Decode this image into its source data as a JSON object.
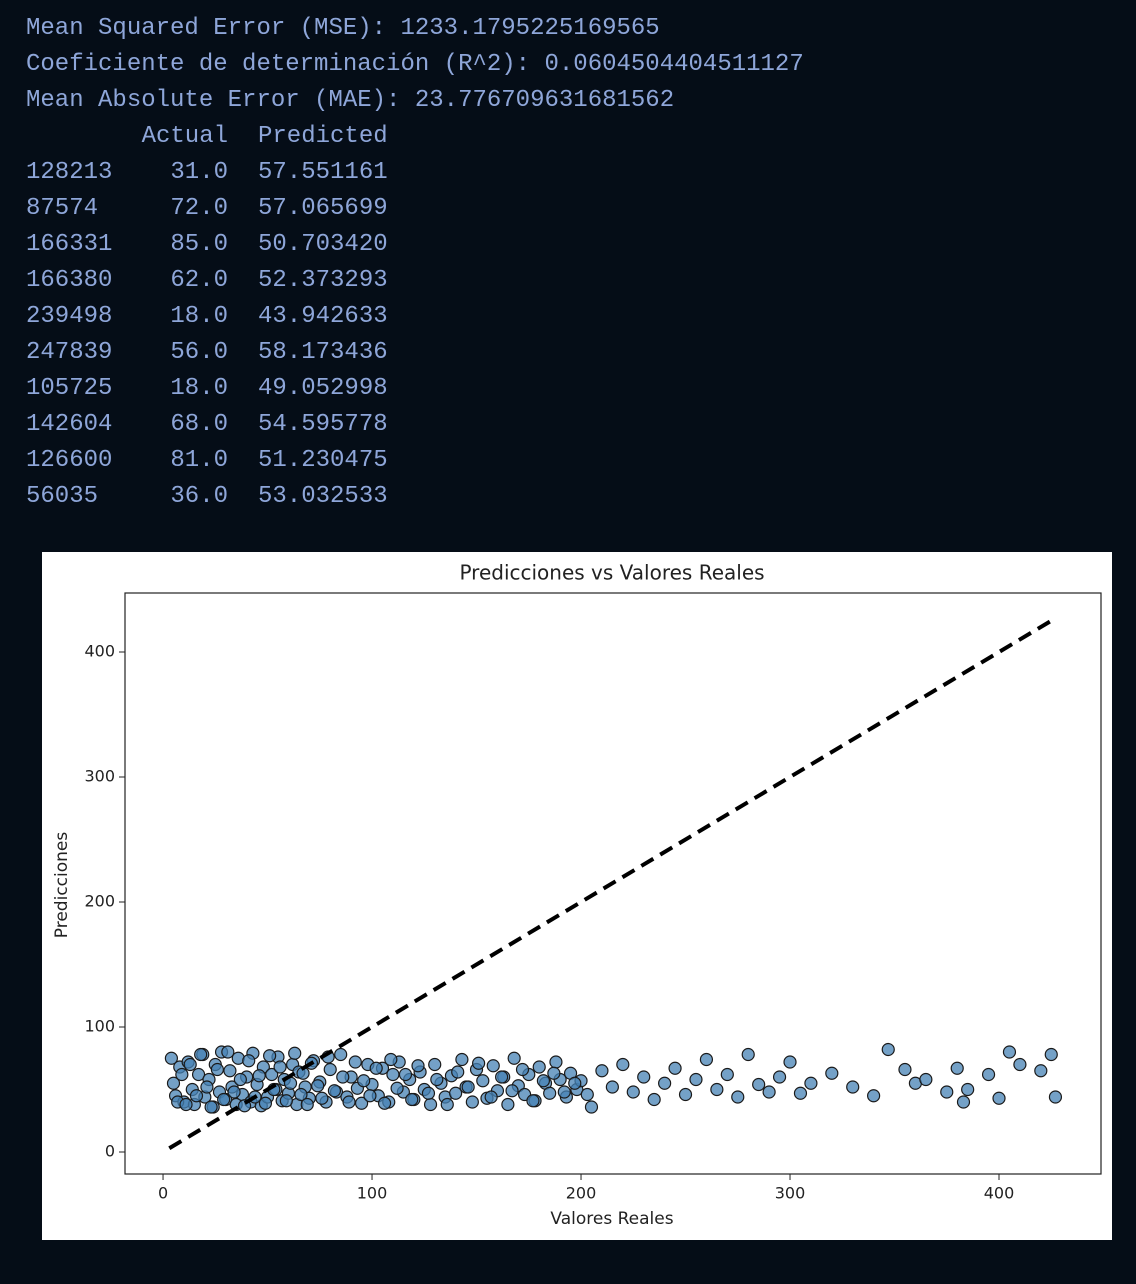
{
  "output": {
    "lines": [
      "Mean Squared Error (MSE): 1233.1795225169565",
      "Coeficiente de determinación (R^2): 0.0604504404511127",
      "Mean Absolute Error (MAE): 23.776709631681562"
    ],
    "table": {
      "columns": [
        "Actual",
        "Predicted"
      ],
      "rows": [
        [
          "128213",
          "31.0",
          "57.551161"
        ],
        [
          "87574",
          "72.0",
          "57.065699"
        ],
        [
          "166331",
          "85.0",
          "50.703420"
        ],
        [
          "166380",
          "62.0",
          "52.373293"
        ],
        [
          "239498",
          "18.0",
          "43.942633"
        ],
        [
          "247839",
          "56.0",
          "58.173436"
        ],
        [
          "105725",
          "18.0",
          "49.052998"
        ],
        [
          "142604",
          "68.0",
          "54.595778"
        ],
        [
          "126600",
          "81.0",
          "51.230475"
        ],
        [
          "56035",
          "36.0",
          "53.032533"
        ]
      ]
    }
  },
  "chart_data": {
    "type": "scatter",
    "title": "Predicciones vs Valores Reales",
    "x_label": "Valores Reales",
    "y_label": "Predicciones",
    "xlim": [
      -18.2,
      448.8
    ],
    "ylim": [
      -17.6,
      447.2
    ],
    "xticks": [
      0,
      100,
      200,
      300,
      400
    ],
    "yticks": [
      0,
      100,
      200,
      300,
      400
    ],
    "points": {
      "color": "#4682b4",
      "x": [
        5,
        6,
        8,
        10,
        12,
        14,
        15,
        17,
        19,
        20,
        22,
        24,
        25,
        27,
        28,
        30,
        32,
        33,
        35,
        36,
        38,
        40,
        42,
        43,
        45,
        47,
        48,
        50,
        52,
        54,
        55,
        57,
        58,
        60,
        62,
        64,
        65,
        68,
        70,
        72,
        75,
        78,
        80,
        83,
        85,
        88,
        90,
        93,
        95,
        98,
        100,
        103,
        105,
        108,
        110,
        113,
        115,
        118,
        120,
        123,
        125,
        128,
        130,
        133,
        135,
        138,
        140,
        143,
        145,
        148,
        150,
        153,
        155,
        158,
        160,
        163,
        165,
        168,
        170,
        173,
        175,
        178,
        180,
        183,
        185,
        188,
        190,
        193,
        195,
        198,
        200,
        203,
        205,
        210,
        215,
        220,
        225,
        230,
        235,
        240,
        245,
        250,
        255,
        260,
        265,
        270,
        275,
        280,
        285,
        290,
        295,
        300,
        305,
        310,
        320,
        330,
        340,
        347,
        355,
        360,
        365,
        375,
        380,
        383,
        385,
        395,
        400,
        405,
        410,
        420,
        425,
        427,
        4,
        7,
        9,
        11,
        13,
        16,
        18,
        21,
        23,
        26,
        29,
        31,
        34,
        37,
        39,
        41,
        44,
        46,
        49,
        51,
        53,
        56,
        59,
        61,
        63,
        66,
        67,
        69,
        71,
        74,
        76,
        79,
        82,
        86,
        89,
        92,
        96,
        99,
        102,
        106,
        109,
        112,
        116,
        119,
        122,
        127,
        131,
        136,
        141,
        146,
        151,
        157,
        162,
        167,
        172,
        177,
        182,
        187,
        192,
        197
      ],
      "y": [
        55,
        45,
        68,
        40,
        72,
        50,
        38,
        62,
        78,
        44,
        58,
        36,
        70,
        48,
        80,
        42,
        65,
        52,
        38,
        75,
        46,
        60,
        40,
        79,
        54,
        37,
        68,
        44,
        62,
        50,
        76,
        41,
        58,
        47,
        70,
        38,
        64,
        52,
        43,
        73,
        56,
        40,
        66,
        48,
        78,
        44,
        60,
        51,
        39,
        70,
        54,
        45,
        67,
        40,
        62,
        72,
        48,
        58,
        42,
        64,
        50,
        38,
        70,
        55,
        44,
        61,
        47,
        74,
        52,
        40,
        66,
        57,
        43,
        69,
        49,
        60,
        38,
        75,
        53,
        46,
        62,
        41,
        68,
        55,
        47,
        72,
        58,
        44,
        63,
        50,
        57,
        46,
        36,
        65,
        52,
        70,
        48,
        60,
        42,
        55,
        67,
        46,
        58,
        74,
        50,
        62,
        44,
        78,
        54,
        48,
        60,
        72,
        47,
        55,
        63,
        52,
        45,
        82,
        66,
        55,
        58,
        48,
        67,
        40,
        50,
        62,
        43,
        80,
        70,
        65,
        78,
        44,
        75,
        40,
        62,
        38,
        70,
        45,
        78,
        52,
        36,
        66,
        42,
        80,
        48,
        58,
        37,
        73,
        44,
        61,
        39,
        77,
        50,
        68,
        41,
        55,
        79,
        46,
        63,
        38,
        71,
        53,
        43,
        76,
        49,
        60,
        40,
        72,
        57,
        45,
        67,
        39,
        74,
        51,
        62,
        42,
        69,
        47,
        58,
        38,
        64,
        52,
        71,
        44,
        60,
        49,
        66,
        41,
        57,
        63,
        48,
        55
      ]
    },
    "reference_line": {
      "x": [
        3,
        427
      ],
      "y": [
        3,
        427
      ],
      "color": "#000000",
      "style": "dashed"
    }
  }
}
